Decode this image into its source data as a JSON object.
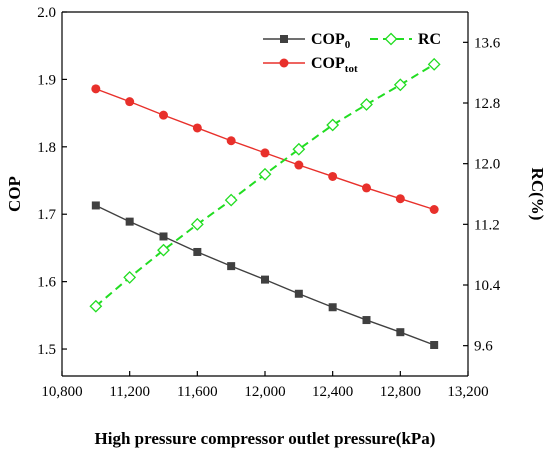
{
  "chart_data": {
    "type": "line",
    "title": "",
    "xlabel": "High pressure compressor outlet pressure(kPa)",
    "ylabel_left": "COP",
    "ylabel_right": "RC(%)",
    "x_ticks": [
      "10,800",
      "11,200",
      "11,600",
      "12,000",
      "12,400",
      "12,800",
      "13,200"
    ],
    "y_left_ticks": [
      "1.5",
      "1.6",
      "1.7",
      "1.8",
      "1.9",
      "2.0"
    ],
    "y_right_ticks": [
      "9.6",
      "10.4",
      "11.2",
      "12.0",
      "12.8",
      "13.6"
    ],
    "xlim": [
      10800,
      13200
    ],
    "ylim_left": [
      1.46,
      2.0
    ],
    "ylim_right": [
      9.2,
      14.0
    ],
    "x": [
      11000,
      11200,
      11400,
      11600,
      11800,
      12000,
      12200,
      12400,
      12600,
      12800,
      13000
    ],
    "legend_position": "top-right",
    "grid": false,
    "series": [
      {
        "name": "COP0",
        "name_main": "COP",
        "name_sub": "0",
        "axis": "left",
        "color": "#404040",
        "line_style": "solid",
        "marker": "filled-square",
        "values": [
          1.713,
          1.689,
          1.667,
          1.644,
          1.623,
          1.603,
          1.582,
          1.562,
          1.543,
          1.525,
          1.506
        ]
      },
      {
        "name": "COPtot",
        "name_main": "COP",
        "name_sub": "tot",
        "axis": "left",
        "color": "#e8302b",
        "line_style": "solid",
        "marker": "filled-circle",
        "values": [
          1.886,
          1.867,
          1.847,
          1.828,
          1.809,
          1.791,
          1.773,
          1.756,
          1.739,
          1.723,
          1.707
        ]
      },
      {
        "name": "RC",
        "name_main": "RC",
        "name_sub": "",
        "axis": "right",
        "color": "#22dd22",
        "line_style": "dashed",
        "marker": "open-diamond",
        "values": [
          10.12,
          10.5,
          10.86,
          11.2,
          11.52,
          11.86,
          12.19,
          12.51,
          12.78,
          13.04,
          13.31
        ]
      }
    ]
  }
}
